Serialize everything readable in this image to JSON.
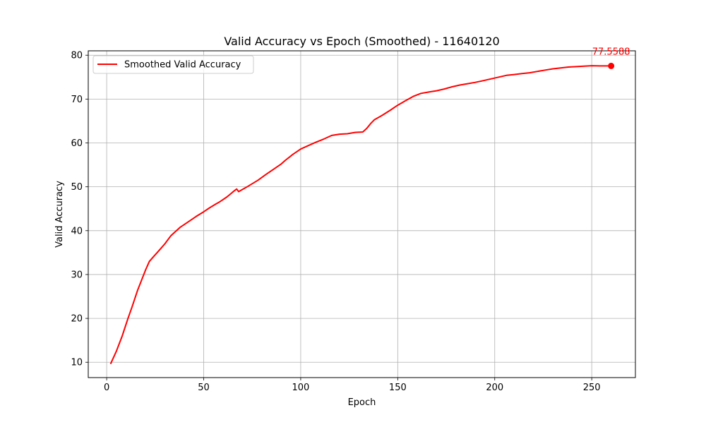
{
  "chart_data": {
    "type": "line",
    "title": "Valid Accuracy vs Epoch (Smoothed) - 11640120",
    "xlabel": "Epoch",
    "ylabel": "Valid Accuracy",
    "xlim": [
      -9.5,
      272.5
    ],
    "ylim": [
      6.5,
      81
    ],
    "xticks": [
      0,
      50,
      100,
      150,
      200,
      250
    ],
    "yticks": [
      10,
      20,
      30,
      40,
      50,
      60,
      70,
      80
    ],
    "grid": true,
    "legend_position": "top-left",
    "series": [
      {
        "name": "Smoothed Valid Accuracy",
        "color": "#ff0000",
        "x": [
          2,
          5,
          8,
          11,
          13,
          16,
          20,
          22,
          24,
          26,
          28,
          30,
          33,
          36,
          38,
          42,
          46,
          50,
          53,
          56,
          58,
          62,
          65,
          67,
          68,
          72,
          78,
          82,
          86,
          90,
          92,
          96,
          100,
          104,
          108,
          112,
          116,
          120,
          124,
          128,
          132,
          134,
          136,
          138,
          140,
          142,
          146,
          150,
          154,
          158,
          162,
          166,
          170,
          174,
          178,
          182,
          186,
          190,
          194,
          198,
          202,
          206,
          210,
          214,
          218,
          222,
          226,
          230,
          234,
          238,
          242,
          246,
          250,
          254,
          258,
          260
        ],
        "y": [
          9.6,
          12.5,
          16.0,
          20.0,
          22.5,
          26.5,
          31.0,
          33.0,
          34.0,
          35.0,
          36.0,
          37.0,
          38.8,
          40.0,
          40.8,
          42.0,
          43.2,
          44.3,
          45.2,
          46.0,
          46.5,
          47.7,
          48.8,
          49.5,
          48.9,
          49.9,
          51.5,
          52.8,
          54.0,
          55.2,
          56.0,
          57.4,
          58.6,
          59.4,
          60.2,
          60.9,
          61.7,
          62.0,
          62.1,
          62.4,
          62.5,
          63.3,
          64.4,
          65.3,
          65.8,
          66.3,
          67.4,
          68.6,
          69.6,
          70.6,
          71.3,
          71.6,
          71.9,
          72.3,
          72.8,
          73.2,
          73.5,
          73.8,
          74.2,
          74.6,
          75.0,
          75.4,
          75.6,
          75.8,
          76.0,
          76.3,
          76.6,
          76.9,
          77.1,
          77.3,
          77.4,
          77.5,
          77.6,
          77.55,
          77.55,
          77.5588
        ]
      }
    ],
    "annotations": [
      {
        "text": "77.5588",
        "x": 260,
        "y": 77.5588,
        "color": "#ff0000"
      }
    ]
  }
}
